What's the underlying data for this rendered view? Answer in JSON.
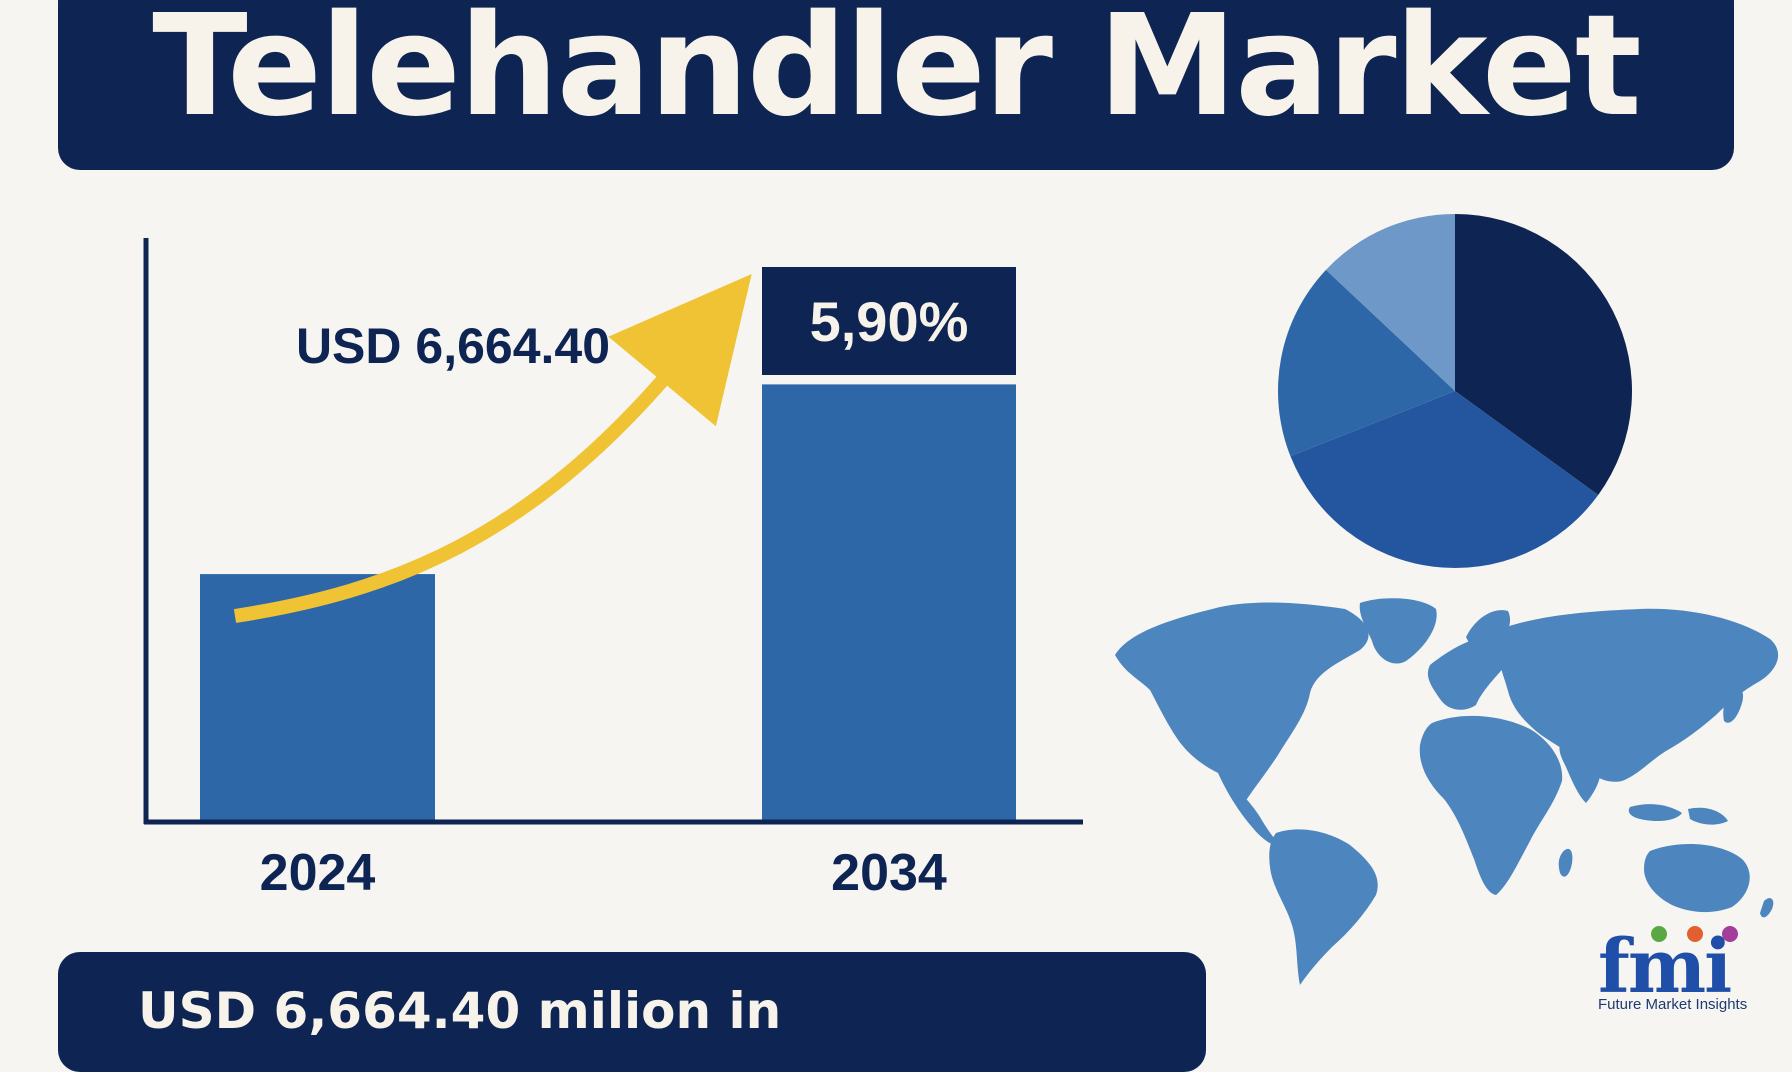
{
  "title": "Telehandler Market",
  "chart_data": [
    {
      "type": "bar",
      "categories": [
        "2024",
        "2034"
      ],
      "values": [
        6664.4,
        11805
      ],
      "annotations": {
        "start_value_label": "USD 6,664.40",
        "growth_rate_label": "5,90%"
      },
      "colors": {
        "bar": "#2e67a8",
        "axis": "#0e2452",
        "label": "#0e2452",
        "arrow": "#f0c335",
        "badge": "#0e2452"
      }
    },
    {
      "type": "pie",
      "values": [
        35,
        34,
        18,
        13
      ],
      "colors": [
        "#0e2452",
        "#2456a0",
        "#2e67a8",
        "#6d98c7"
      ]
    }
  ],
  "bottom_banner": {
    "text": "USD 6,664.40 milion in"
  },
  "logo": {
    "word": "fmi",
    "tagline": "Future Market Insights",
    "dot_colors": [
      "#5aa843",
      "#e26030",
      "#a23d9a"
    ]
  },
  "map": {
    "icon": "world-map-icon",
    "color": "#4d86be"
  },
  "colors": {
    "background": "#f6f5f2",
    "banner": "#0e2452",
    "banner_text": "#f7f3ea"
  }
}
